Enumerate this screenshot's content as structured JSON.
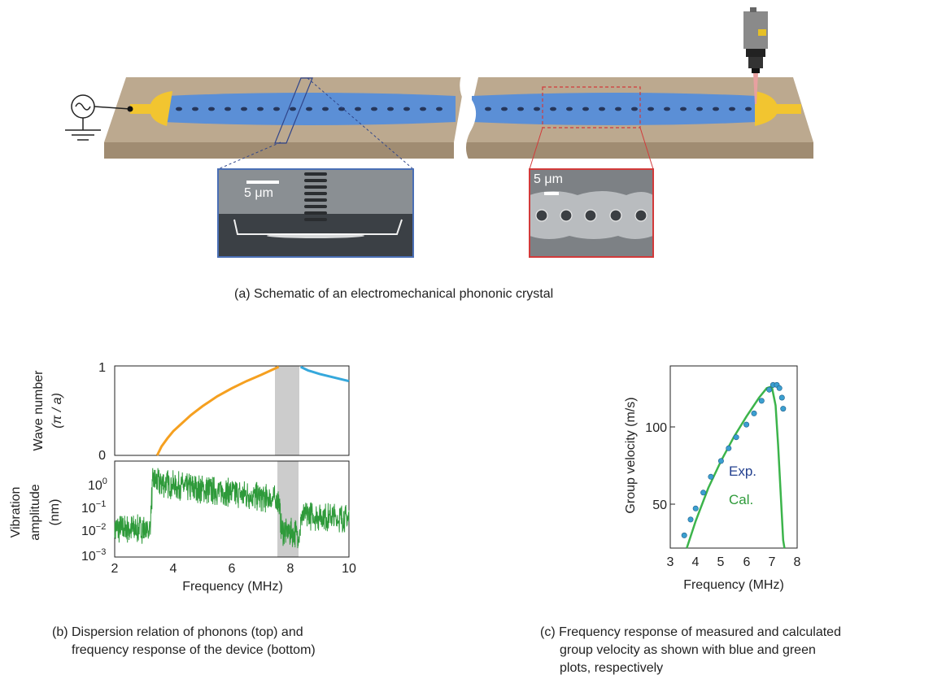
{
  "schematic": {
    "caption": "(a) Schematic of an electromechanical phononic crystal",
    "sem_left_scale": "5 μm",
    "sem_right_scale": "5 μm"
  },
  "panel_b": {
    "caption_line1": "(b) Dispersion relation of phonons (top) and",
    "caption_line2": "frequency response of the device (bottom)",
    "top_ylabel_line1": "Wave number",
    "top_ylabel_line2": "(π / a)",
    "bottom_ylabel_line1": "Vibration",
    "bottom_ylabel_line2": "amplitude",
    "bottom_ylabel_line3": "(nm)",
    "xlabel": "Frequency (MHz)",
    "top_yticks": [
      "1",
      "0"
    ],
    "bottom_yticks": [
      "10",
      "0",
      "10",
      "−1",
      "10",
      "−2",
      "10",
      "−3"
    ],
    "xticks": [
      "2",
      "4",
      "6",
      "8",
      "10"
    ]
  },
  "panel_c": {
    "caption_line1": "(c) Frequency response of measured and calculated",
    "caption_line2": "group velocity as shown with blue and green",
    "caption_line3": "plots, respectively",
    "ylabel": "Group velocity (m/s)",
    "xlabel": "Frequency (MHz)",
    "legend_exp": "Exp.",
    "legend_cal": "Cal.",
    "yticks": [
      "100",
      "50"
    ],
    "xticks": [
      "3",
      "4",
      "5",
      "6",
      "7",
      "8"
    ]
  },
  "colors": {
    "substrate_top": "#bca98f",
    "substrate_side": "#a08c72",
    "membrane": "#5b8fd6",
    "electrode": "#f2c530",
    "band_lower": "#f5a020",
    "band_upper": "#35a8dc",
    "response": "#2e9a3a",
    "gap": "#cccccc",
    "exp_points": "#3b9fd0",
    "exp_text": "#23408f",
    "cal_curve": "#3cb44b",
    "cal_text": "#2e9a3a",
    "sem_left_border": "#4a6fb5",
    "sem_right_border": "#d23a3a"
  },
  "chart_data": [
    {
      "type": "line",
      "panel": "b-top",
      "xlabel": "Frequency (MHz)",
      "ylabel": "Wave number (π / a)",
      "xlim": [
        2,
        10
      ],
      "ylim": [
        0,
        1
      ],
      "band_gap": [
        7.6,
        8.3
      ],
      "series": [
        {
          "x": [
            3.45,
            3.6,
            3.8,
            4.0,
            4.3,
            4.6,
            5.0,
            5.5,
            6.0,
            6.5,
            7.0,
            7.6
          ],
          "y": [
            0.0,
            0.1,
            0.19,
            0.27,
            0.36,
            0.45,
            0.55,
            0.66,
            0.75,
            0.83,
            0.9,
            0.99
          ]
        },
        {
          "x": [
            8.35,
            8.6,
            9.0,
            9.5,
            10.0
          ],
          "y": [
            0.99,
            0.95,
            0.91,
            0.87,
            0.83
          ]
        }
      ]
    },
    {
      "type": "line",
      "panel": "b-bottom",
      "xlabel": "Frequency (MHz)",
      "ylabel": "Vibration amplitude (nm)",
      "xlim": [
        2,
        10
      ],
      "ylim": [
        0.001,
        5
      ],
      "log_y": true,
      "band_gap": [
        7.6,
        8.3
      ],
      "approx_level": {
        "x": [
          2.0,
          3.2,
          3.3,
          4.0,
          5.0,
          6.0,
          7.0,
          7.6,
          7.7,
          8.3,
          8.4,
          10.0
        ],
        "y": [
          0.012,
          0.012,
          0.8,
          0.6,
          0.4,
          0.3,
          0.2,
          0.15,
          0.01,
          0.008,
          0.04,
          0.03
        ]
      }
    },
    {
      "type": "scatter",
      "panel": "c",
      "xlabel": "Frequency (MHz)",
      "ylabel": "Group velocity (m/s)",
      "xlim": [
        3,
        8
      ],
      "ylim": [
        25,
        140
      ],
      "series": [
        {
          "name": "Exp.",
          "x": [
            3.55,
            3.8,
            4.0,
            4.3,
            4.6,
            5.0,
            5.3,
            5.6,
            6.0,
            6.3,
            6.6,
            6.9,
            7.05,
            7.2,
            7.3,
            7.4,
            7.45
          ],
          "y": [
            33,
            43,
            50,
            60,
            70,
            80,
            88,
            95,
            103,
            110,
            118,
            125,
            128,
            128,
            126,
            120,
            113
          ]
        },
        {
          "name": "Cal.",
          "x": [
            3.65,
            4.0,
            4.5,
            5.0,
            5.5,
            6.0,
            6.5,
            6.8,
            7.0,
            7.15,
            7.25,
            7.35,
            7.45,
            7.5
          ],
          "y": [
            25,
            42,
            63,
            80,
            95,
            108,
            120,
            126,
            127,
            115,
            90,
            60,
            30,
            25
          ]
        }
      ]
    }
  ]
}
